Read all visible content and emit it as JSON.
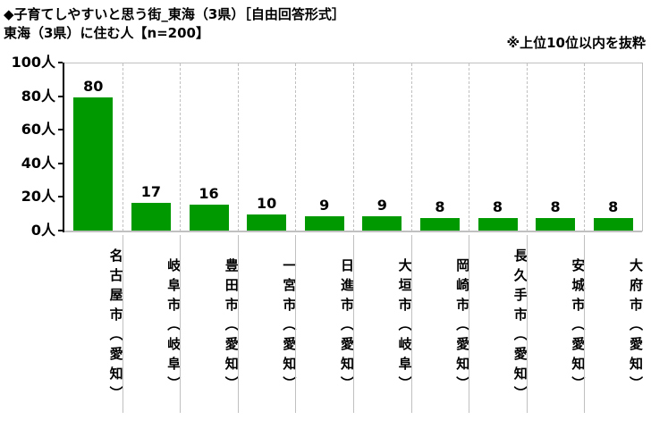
{
  "header": {
    "title_line1": "◆子育てしやすいと思う街_東海（3県）［自由回答形式］",
    "title_line2": "東海（3県）に住む人【n=200】",
    "note": "※上位10位以内を抜粋"
  },
  "chart_data": {
    "type": "bar",
    "title": "子育てしやすいと思う街_東海（3県）",
    "subtitle": "東海（3県）に住む人 n=200",
    "categories": [
      "名古屋市（愛知）",
      "岐阜市（岐阜）",
      "豊田市（愛知）",
      "一宮市（愛知）",
      "日進市（愛知）",
      "大垣市（岐阜）",
      "岡崎市（愛知）",
      "長久手市（愛知）",
      "安城市（愛知）",
      "大府市（愛知）"
    ],
    "values": [
      80,
      17,
      16,
      10,
      9,
      9,
      8,
      8,
      8,
      8
    ],
    "ytick_values": [
      0,
      20,
      40,
      60,
      80,
      100
    ],
    "ytick_labels": [
      "0人",
      "20人",
      "40人",
      "60人",
      "80人",
      "100人"
    ],
    "ylim": [
      0,
      100
    ],
    "unit": "人",
    "bar_color": "#009900",
    "grid_color": "#c0c0c0",
    "legend": "none",
    "grid": "vertical dashed separators between categories"
  }
}
